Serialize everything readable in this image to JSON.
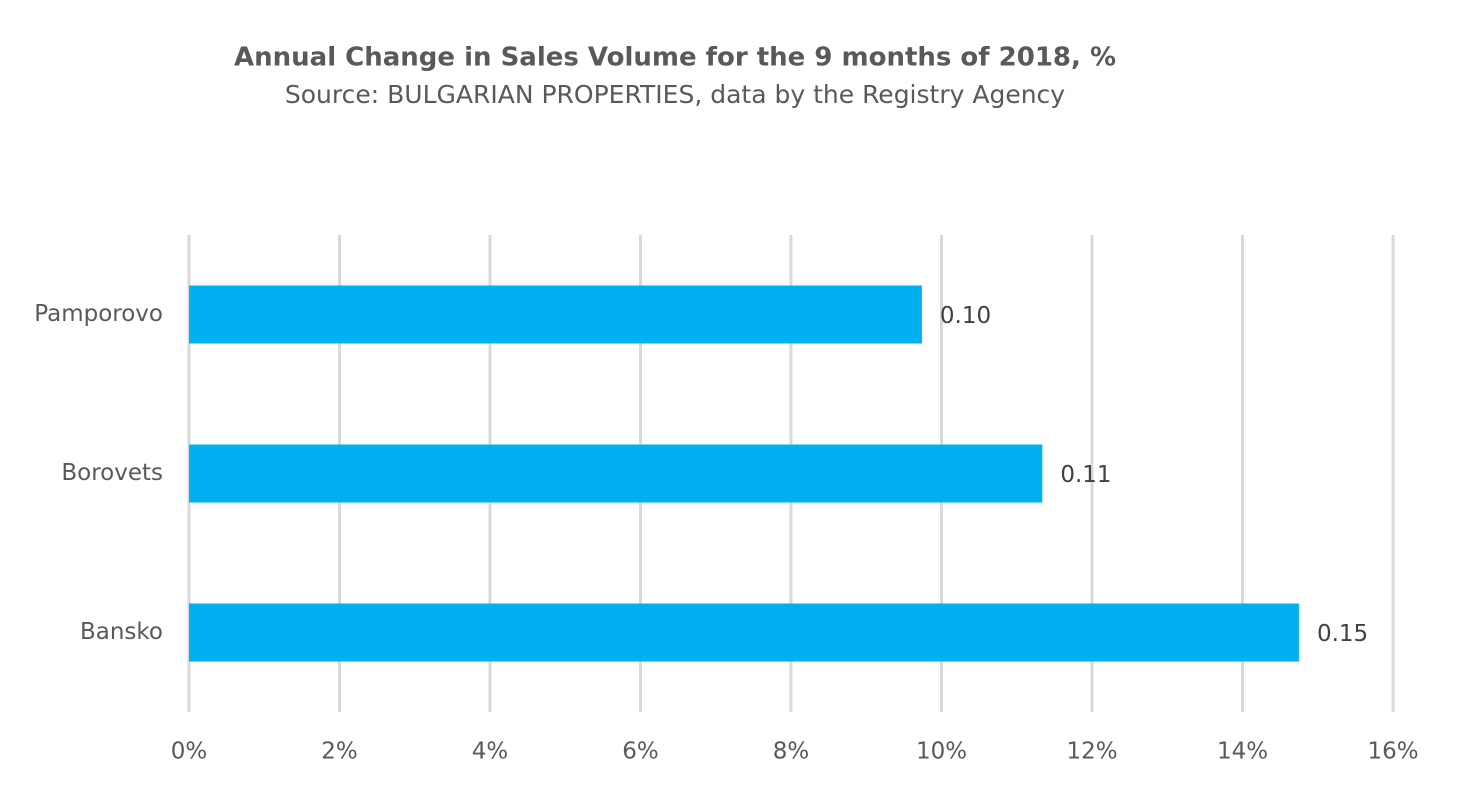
{
  "chart_data": {
    "type": "bar",
    "orientation": "horizontal",
    "title": "Annual Change in Sales Volume for the 9 months of 2018, %",
    "subtitle": "Source: BULGARIAN PROPERTIES, data by the Registry Agency",
    "categories": [
      "Pamporovo",
      "Borovets",
      "Bansko"
    ],
    "values": [
      9.74,
      11.34,
      14.75
    ],
    "value_labels": [
      "0.10",
      "0.11",
      "0.15"
    ],
    "color": "#00b0f0",
    "xlim": [
      0,
      16
    ],
    "xticks": [
      {
        "value": 0,
        "label": "0%"
      },
      {
        "value": 2,
        "label": "2%"
      },
      {
        "value": 4,
        "label": "4%"
      },
      {
        "value": 6,
        "label": "6%"
      },
      {
        "value": 8,
        "label": "8%"
      },
      {
        "value": 10,
        "label": "10%"
      },
      {
        "value": 12,
        "label": "12%"
      },
      {
        "value": 14,
        "label": "14%"
      },
      {
        "value": 16,
        "label": "16%"
      }
    ],
    "grid": true
  }
}
